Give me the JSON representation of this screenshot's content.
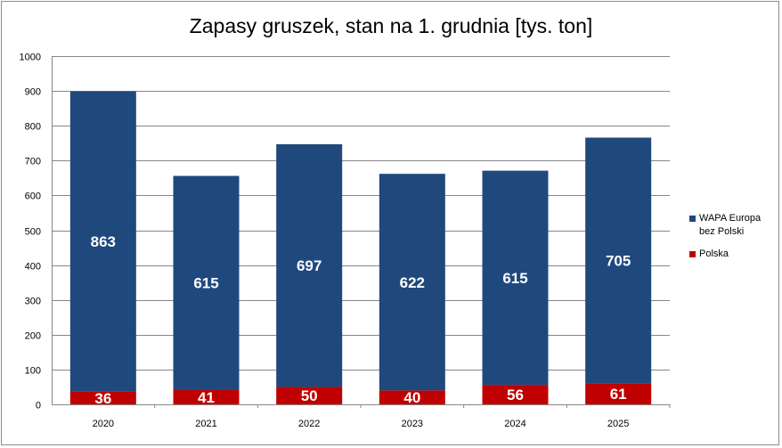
{
  "chart_data": {
    "type": "bar",
    "stacked": true,
    "title": "Zapasy gruszek, stan na 1. grudnia [tys. ton]",
    "categories": [
      "2020",
      "2021",
      "2022",
      "2023",
      "2024",
      "2025"
    ],
    "series": [
      {
        "name": "Polska",
        "values": [
          36,
          41,
          50,
          40,
          56,
          61
        ],
        "color": "#c00000"
      },
      {
        "name": "WAPA Europa bez Polski",
        "values": [
          863,
          615,
          697,
          622,
          615,
          705
        ],
        "color": "#1f497d"
      }
    ],
    "ylim": [
      0,
      1000
    ],
    "yticks": [
      "0",
      "100",
      "200",
      "300",
      "400",
      "500",
      "600",
      "700",
      "800",
      "900",
      "1000"
    ],
    "grid": true,
    "legend_position": "right",
    "legend": [
      {
        "label_line1": "WAPA Europa",
        "label_line2": "bez Polski",
        "color": "#1f497d"
      },
      {
        "label_line1": "Polska",
        "label_line2": "",
        "color": "#c00000"
      }
    ]
  }
}
